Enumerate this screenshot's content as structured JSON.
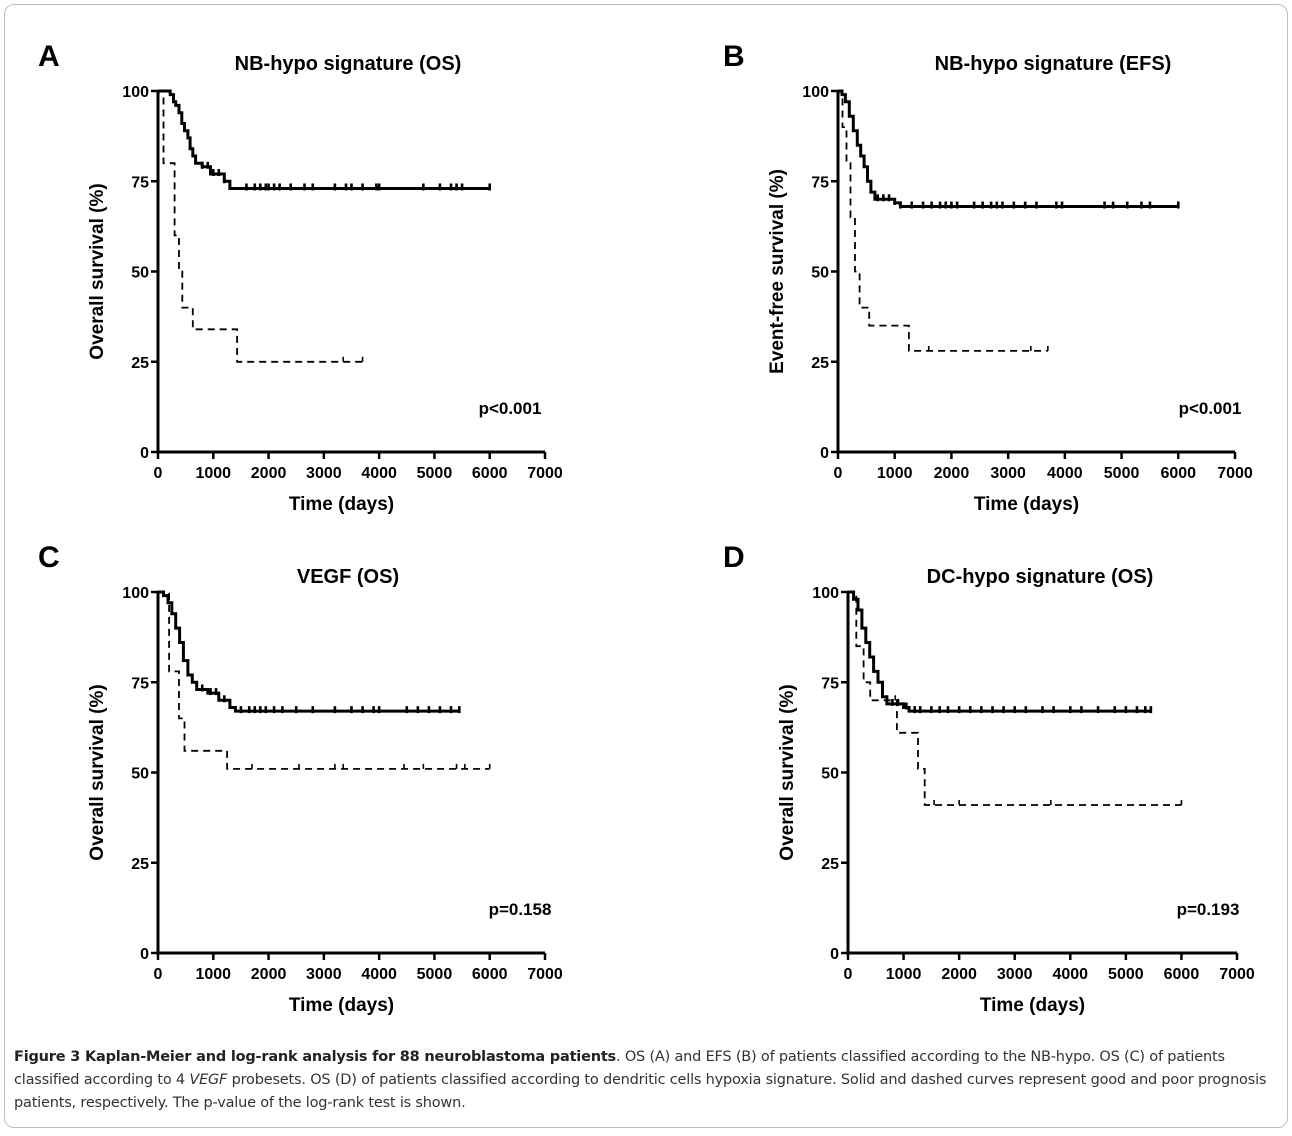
{
  "chart_data": [
    {
      "type": "line",
      "panel_letter": "A",
      "title": "NB-hypo signature (OS)",
      "xlabel": "Time (days)",
      "ylabel": "Overall survival (%)",
      "xlim": [
        0,
        7000
      ],
      "ylim": [
        0,
        100
      ],
      "xticks": [
        "0",
        "1000",
        "2000",
        "3000",
        "4000",
        "5000",
        "6000",
        "7000"
      ],
      "yticks": [
        "0",
        "25",
        "50",
        "75",
        "100"
      ],
      "annotation": "p<0.001",
      "series": [
        {
          "style": "solid",
          "steps": [
            [
              0,
              100
            ],
            [
              150,
              100
            ],
            [
              220,
              99
            ],
            [
              280,
              97
            ],
            [
              320,
              96
            ],
            [
              380,
              94
            ],
            [
              430,
              91
            ],
            [
              480,
              89
            ],
            [
              540,
              87
            ],
            [
              580,
              84
            ],
            [
              630,
              82
            ],
            [
              680,
              80
            ],
            [
              800,
              79
            ],
            [
              950,
              77
            ],
            [
              1200,
              75
            ],
            [
              1300,
              73
            ],
            [
              6000,
              73
            ]
          ],
          "censors": [
            800,
            900,
            1000,
            1100,
            1200,
            1600,
            1750,
            1850,
            1950,
            2000,
            2100,
            2200,
            2400,
            2650,
            2800,
            3200,
            3400,
            3500,
            3700,
            3950,
            4000,
            4800,
            5100,
            5300,
            5400,
            5500,
            6000
          ]
        },
        {
          "style": "dashed",
          "steps": [
            [
              0,
              100
            ],
            [
              100,
              80
            ],
            [
              300,
              60
            ],
            [
              380,
              50
            ],
            [
              440,
              40
            ],
            [
              560,
              40
            ],
            [
              630,
              34
            ],
            [
              1370,
              34
            ],
            [
              1430,
              25
            ],
            [
              3700,
              25
            ]
          ],
          "censors": [
            3350,
            3700
          ]
        }
      ]
    },
    {
      "type": "line",
      "panel_letter": "B",
      "title": "NB-hypo signature (EFS)",
      "xlabel": "Time (days)",
      "ylabel": "Event-free survival (%)",
      "xlim": [
        0,
        7000
      ],
      "ylim": [
        0,
        100
      ],
      "xticks": [
        "0",
        "1000",
        "2000",
        "3000",
        "4000",
        "5000",
        "6000",
        "7000"
      ],
      "yticks": [
        "0",
        "25",
        "50",
        "75",
        "100"
      ],
      "annotation": "p<0.001",
      "series": [
        {
          "style": "solid",
          "steps": [
            [
              0,
              100
            ],
            [
              70,
              99
            ],
            [
              130,
              97
            ],
            [
              200,
              93
            ],
            [
              270,
              89
            ],
            [
              340,
              85
            ],
            [
              400,
              82
            ],
            [
              460,
              79
            ],
            [
              520,
              75
            ],
            [
              580,
              72
            ],
            [
              650,
              70
            ],
            [
              1000,
              69
            ],
            [
              1100,
              68
            ],
            [
              6000,
              68
            ]
          ],
          "censors": [
            700,
            800,
            900,
            1000,
            1100,
            1300,
            1500,
            1650,
            1800,
            1900,
            2000,
            2100,
            2400,
            2550,
            2700,
            2800,
            2900,
            3100,
            3300,
            3500,
            3850,
            3950,
            4700,
            4850,
            5100,
            5350,
            5500,
            6000
          ]
        },
        {
          "style": "dashed",
          "steps": [
            [
              0,
              100
            ],
            [
              80,
              90
            ],
            [
              150,
              80
            ],
            [
              220,
              65
            ],
            [
              300,
              50
            ],
            [
              380,
              40
            ],
            [
              480,
              40
            ],
            [
              550,
              35
            ],
            [
              1150,
              35
            ],
            [
              1250,
              28
            ],
            [
              3700,
              28
            ]
          ],
          "censors": [
            1600,
            3400,
            3700
          ]
        }
      ]
    },
    {
      "type": "line",
      "panel_letter": "C",
      "title": "VEGF (OS)",
      "xlabel": "Time (days)",
      "ylabel": "Overall survival (%)",
      "xlim": [
        0,
        7000
      ],
      "ylim": [
        0,
        100
      ],
      "xticks": [
        "0",
        "1000",
        "2000",
        "3000",
        "4000",
        "5000",
        "6000",
        "7000"
      ],
      "yticks": [
        "0",
        "25",
        "50",
        "75",
        "100"
      ],
      "annotation": "p=0.158",
      "series": [
        {
          "style": "solid",
          "steps": [
            [
              0,
              100
            ],
            [
              100,
              99
            ],
            [
              180,
              97
            ],
            [
              250,
              94
            ],
            [
              320,
              90
            ],
            [
              390,
              86
            ],
            [
              460,
              81
            ],
            [
              540,
              77
            ],
            [
              620,
              75
            ],
            [
              700,
              73
            ],
            [
              900,
              72
            ],
            [
              1100,
              70
            ],
            [
              1300,
              68
            ],
            [
              1400,
              67
            ],
            [
              5450,
              67
            ]
          ],
          "censors": [
            800,
            950,
            1050,
            1200,
            1500,
            1650,
            1750,
            1850,
            1950,
            2100,
            2250,
            2500,
            2800,
            3200,
            3500,
            3700,
            3900,
            4000,
            4500,
            4700,
            4900,
            5100,
            5300,
            5450
          ]
        },
        {
          "style": "dashed",
          "steps": [
            [
              0,
              100
            ],
            [
              200,
              78
            ],
            [
              380,
              65
            ],
            [
              480,
              56
            ],
            [
              700,
              56
            ],
            [
              1250,
              51
            ],
            [
              6000,
              51
            ]
          ],
          "censors": [
            1700,
            2550,
            3200,
            3350,
            4450,
            4800,
            5400,
            5550,
            6000
          ]
        }
      ]
    },
    {
      "type": "line",
      "panel_letter": "D",
      "title": "DC-hypo signature (OS)",
      "xlabel": "Time (days)",
      "ylabel": "Overall survival (%)",
      "xlim": [
        0,
        7000
      ],
      "ylim": [
        0,
        100
      ],
      "xticks": [
        "0",
        "1000",
        "2000",
        "3000",
        "4000",
        "5000",
        "6000",
        "7000"
      ],
      "yticks": [
        "0",
        "25",
        "50",
        "75",
        "100"
      ],
      "annotation": "p=0.193",
      "series": [
        {
          "style": "solid",
          "steps": [
            [
              0,
              100
            ],
            [
              100,
              98
            ],
            [
              180,
              95
            ],
            [
              250,
              90
            ],
            [
              320,
              86
            ],
            [
              390,
              82
            ],
            [
              460,
              78
            ],
            [
              540,
              75
            ],
            [
              620,
              71
            ],
            [
              700,
              69
            ],
            [
              1000,
              68
            ],
            [
              1100,
              67
            ],
            [
              5450,
              67
            ]
          ],
          "censors": [
            800,
            900,
            1050,
            1200,
            1300,
            1500,
            1650,
            1800,
            2000,
            2200,
            2400,
            2600,
            2800,
            3000,
            3200,
            3500,
            3700,
            4000,
            4200,
            4500,
            4800,
            5000,
            5200,
            5350,
            5450
          ]
        },
        {
          "style": "dashed",
          "steps": [
            [
              0,
              100
            ],
            [
              150,
              85
            ],
            [
              280,
              75
            ],
            [
              400,
              70
            ],
            [
              850,
              70
            ],
            [
              880,
              61
            ],
            [
              1180,
              61
            ],
            [
              1260,
              51
            ],
            [
              1380,
              41
            ],
            [
              6000,
              41
            ]
          ],
          "censors": [
            850,
            1550,
            2000,
            3650,
            6000
          ]
        }
      ]
    }
  ],
  "caption": {
    "label": "Figure 3 Kaplan-Meier and log-rank analysis for 88 neuroblastoma patients",
    "part1": ". OS (A) and EFS (B) of patients classified according to the NB-hypo. OS (C) of patients classified according to 4 ",
    "italic": "VEGF",
    "part2": " probesets. OS (D) of patients classified according to dendritic cells hypoxia signature. Solid and dashed curves represent good and poor prognosis patients, respectively. The p-value of the log-rank test is shown."
  }
}
